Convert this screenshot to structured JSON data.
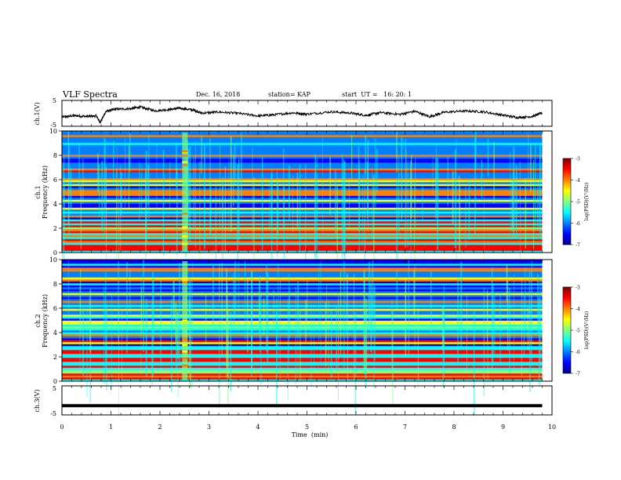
{
  "header": {
    "title": "VLF Spectra",
    "date": "Dec. 16, 2018",
    "station": "station= KAP",
    "start": "start  UT =   16: 20: 1"
  },
  "colors": {
    "colormap": [
      "#00008f",
      "#0000ff",
      "#0080ff",
      "#00ffff",
      "#80ff80",
      "#ffff00",
      "#ff8000",
      "#ff0000",
      "#800000"
    ],
    "trace": "#000000"
  },
  "chart_data": [
    {
      "type": "line",
      "panel": "ch1-waveform",
      "ylabel": "ch.1(V)",
      "yticks": [
        "5",
        "-5"
      ],
      "ylim": [
        -5,
        5
      ],
      "x": [
        0,
        0.25,
        0.5,
        0.7,
        0.78,
        0.9,
        1.1,
        1.4,
        1.6,
        1.9,
        2.2,
        2.4,
        2.7,
        2.85,
        3.2,
        3.6,
        4.0,
        4.3,
        4.7,
        5.0,
        5.5,
        5.9,
        6.2,
        6.5,
        6.9,
        7.2,
        7.5,
        7.8,
        8.2,
        8.6,
        9.0,
        9.3,
        9.6,
        9.8
      ],
      "values": [
        -1.5,
        -0.9,
        -1.2,
        -1.0,
        -3.5,
        0.8,
        1.6,
        1.8,
        2.4,
        1.0,
        1.5,
        2.0,
        1.2,
        0.1,
        0.5,
        0.0,
        -1.0,
        -0.6,
        0.2,
        -0.3,
        0.6,
        0.1,
        -0.8,
        0.3,
        -0.4,
        0.8,
        -1.3,
        0.4,
        0.9,
        0.6,
        -0.7,
        -1.6,
        -1.2,
        0.2
      ]
    },
    {
      "type": "heatmap",
      "panel": "ch1-spectrogram",
      "ylabel": "ch.1",
      "ylabel2": "Frequency (kHz)",
      "yticks": [
        "0",
        "2",
        "4",
        "6",
        "8",
        "10"
      ],
      "ylim": [
        0,
        10
      ],
      "colorbar": {
        "label": "log(PSD)(V²/Hz)",
        "ticks": [
          "-3",
          "-4",
          "-5",
          "-6",
          "-7"
        ],
        "range": [
          -7,
          -3
        ]
      },
      "bands_khz": [
        0.3,
        0.6,
        1.0,
        1.4,
        1.8,
        2.2,
        2.5,
        3.0,
        3.6,
        4.3,
        4.8,
        5.1,
        5.6,
        6.0,
        6.8,
        8.0,
        9.6
      ],
      "burst_min": 2.5
    },
    {
      "type": "heatmap",
      "panel": "ch2-spectrogram",
      "ylabel": "ch.2",
      "ylabel2": "Frequency (kHz)",
      "yticks": [
        "0",
        "2",
        "4",
        "6",
        "8",
        "10"
      ],
      "ylim": [
        0,
        10
      ],
      "colorbar": {
        "label": "log(PSD)(V²/Hz)",
        "ticks": [
          "-3",
          "-4",
          "-5",
          "-6",
          "-7"
        ],
        "range": [
          -7,
          -3
        ]
      },
      "bands_khz": [
        0.3,
        0.6,
        1.2,
        1.8,
        2.4,
        3.2,
        3.8,
        4.4,
        4.8,
        5.4,
        5.9,
        6.5,
        7.2,
        8.4,
        9.2
      ],
      "burst_min": 2.5
    },
    {
      "type": "line",
      "panel": "ch3-waveform",
      "ylabel": "ch.3(V)",
      "yticks": [
        "5",
        "-5"
      ],
      "ylim": [
        -5,
        5
      ],
      "x": [
        0,
        9.8
      ],
      "values": [
        -1.8,
        -1.8
      ]
    }
  ],
  "xaxis": {
    "label": "Time  (min)",
    "ticks": [
      "0",
      "1",
      "2",
      "3",
      "4",
      "5",
      "6",
      "7",
      "8",
      "9",
      "10"
    ],
    "xlim": [
      0,
      10
    ]
  }
}
